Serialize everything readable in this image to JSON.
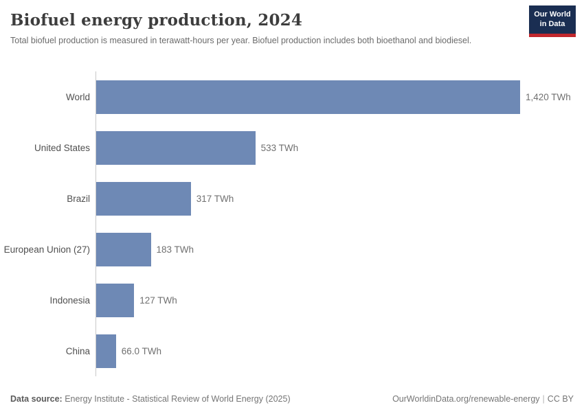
{
  "header": {
    "title": "Biofuel energy production, 2024",
    "subtitle": "Total biofuel production is measured in terawatt-hours per year. Biofuel production includes both bioethanol and biodiesel.",
    "logo": {
      "line1": "Our World",
      "line2": "in Data",
      "bg_color": "#1a2e52",
      "accent_color": "#c1272d"
    }
  },
  "chart_data": {
    "type": "bar",
    "orientation": "horizontal",
    "title": "Biofuel energy production, 2024",
    "unit": "TWh",
    "categories": [
      "World",
      "United States",
      "Brazil",
      "European Union (27)",
      "Indonesia",
      "China"
    ],
    "values": [
      1420,
      533,
      317,
      183,
      127,
      66.0
    ],
    "value_labels": [
      "1,420 TWh",
      "533 TWh",
      "317 TWh",
      "183 TWh",
      "127 TWh",
      "66.0 TWh"
    ],
    "xlim": [
      0,
      1420
    ],
    "grid": false,
    "legend": false,
    "bar_color": "#6e89b5",
    "axis_line_color": "#c9c9c9"
  },
  "footer": {
    "datasource_label": "Data source:",
    "datasource_text": "Energy Institute - Statistical Review of World Energy (2025)",
    "url_text": "OurWorldinData.org/renewable-energy",
    "separator": "|",
    "license_text": "CC BY"
  }
}
